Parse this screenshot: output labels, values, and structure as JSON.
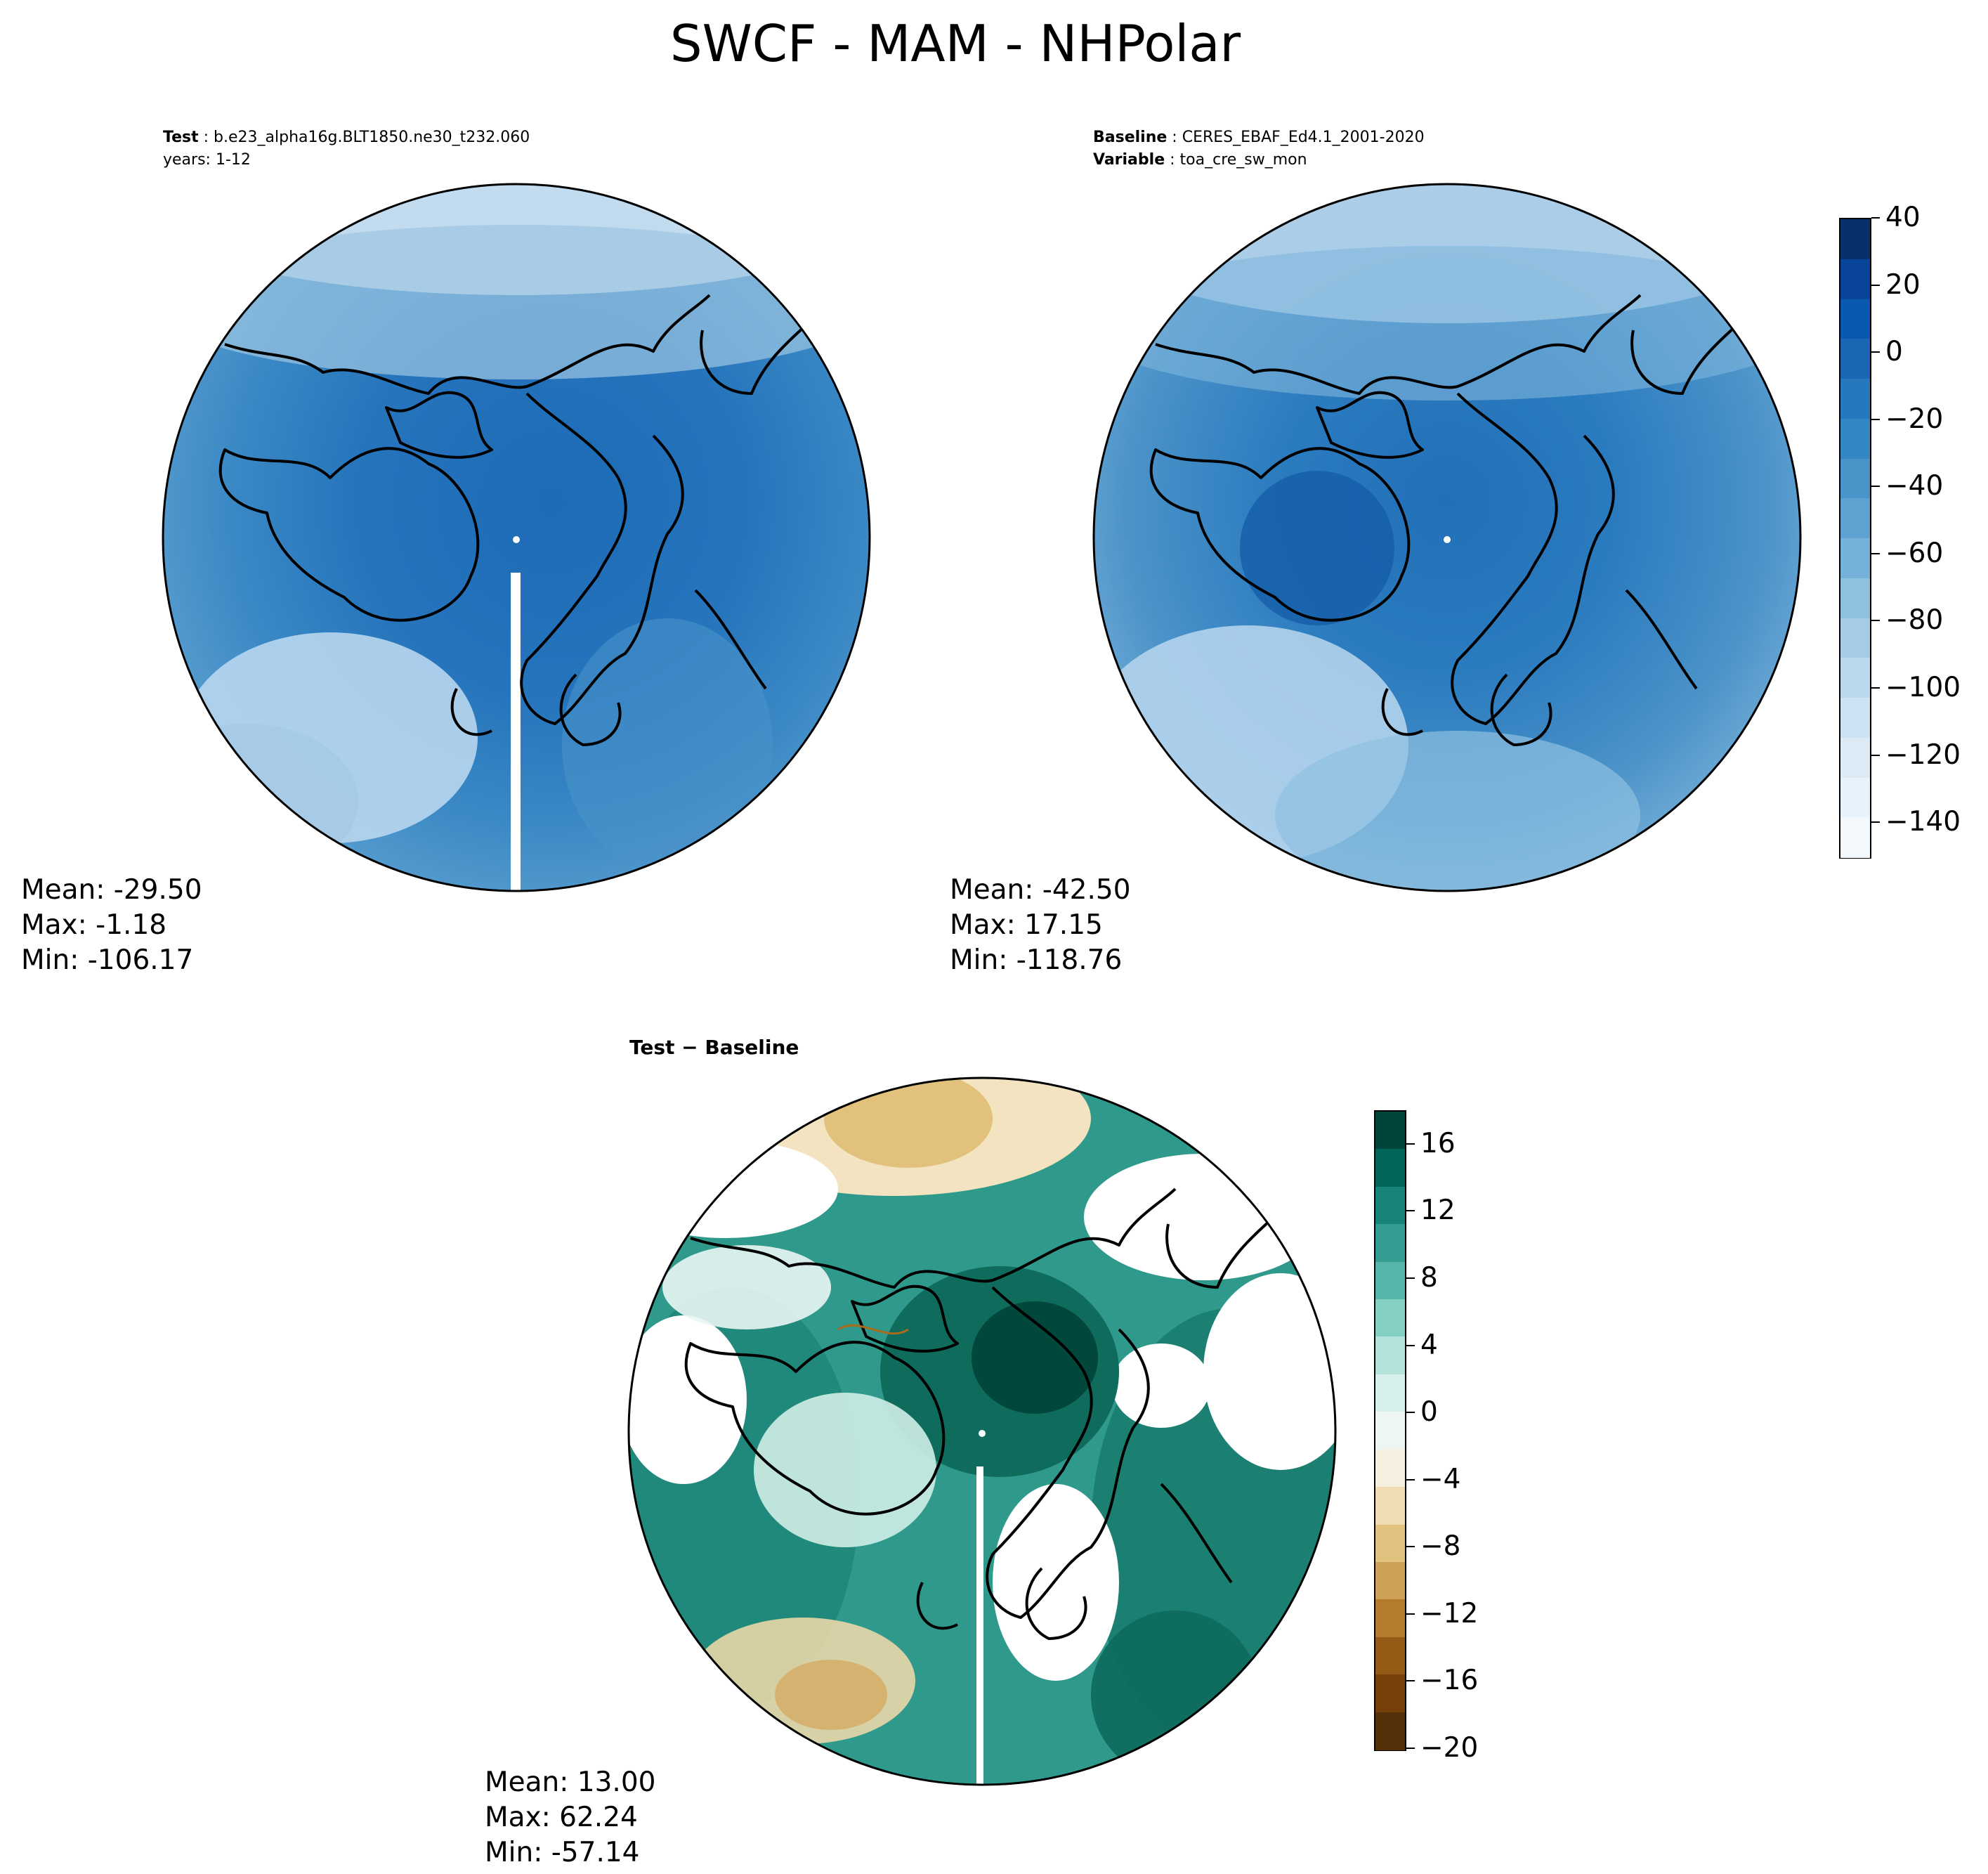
{
  "title": "SWCF - MAM - NHPolar",
  "test_panel": {
    "label_key": "Test",
    "label_value": "b.e23_alpha16g.BLT1850.ne30_t232.060",
    "years": "years: 1-12",
    "stats": {
      "mean": "Mean: -29.50",
      "max": "Max: -1.18",
      "min": "Min: -106.17"
    }
  },
  "baseline_panel": {
    "label_key": "Baseline",
    "label_value": "CERES_EBAF_Ed4.1_2001-2020",
    "variable_key": "Variable",
    "variable_value": "toa_cre_sw_mon",
    "stats": {
      "mean": "Mean: -42.50",
      "max": "Max: 17.15",
      "min": "Min: -118.76"
    }
  },
  "diff_panel": {
    "label": "Test − Baseline",
    "stats": {
      "mean": "Mean: 13.00",
      "max": "Max: 62.24",
      "min": "Min: -57.14"
    }
  },
  "colorbar_top": {
    "ticks": [
      "40",
      "20",
      "0",
      "−20",
      "−40",
      "−60",
      "−80",
      "−100",
      "−120",
      "−140"
    ],
    "colors": [
      "#08306b",
      "#08449a",
      "#0b58b0",
      "#1967b4",
      "#2677bb",
      "#3487c2",
      "#4894c9",
      "#5ea2d1",
      "#75b1d8",
      "#8fc0de",
      "#a6cce5",
      "#bbd8ec",
      "#cde2f2",
      "#dceaf6",
      "#e8f2fa",
      "#f3f8fc"
    ]
  },
  "colorbar_diff": {
    "ticks": [
      "16",
      "12",
      "8",
      "4",
      "0",
      "−4",
      "−8",
      "−12",
      "−16",
      "−20"
    ],
    "colors": [
      "#01453a",
      "#016658",
      "#17847a",
      "#349c91",
      "#56b5a8",
      "#84cfc2",
      "#b2e3da",
      "#d8f0ec",
      "#eef6f4",
      "#f6efe0",
      "#f0dcb2",
      "#e1c27e",
      "#cea158",
      "#b47b2e",
      "#955a15",
      "#76400a",
      "#563008"
    ]
  }
}
